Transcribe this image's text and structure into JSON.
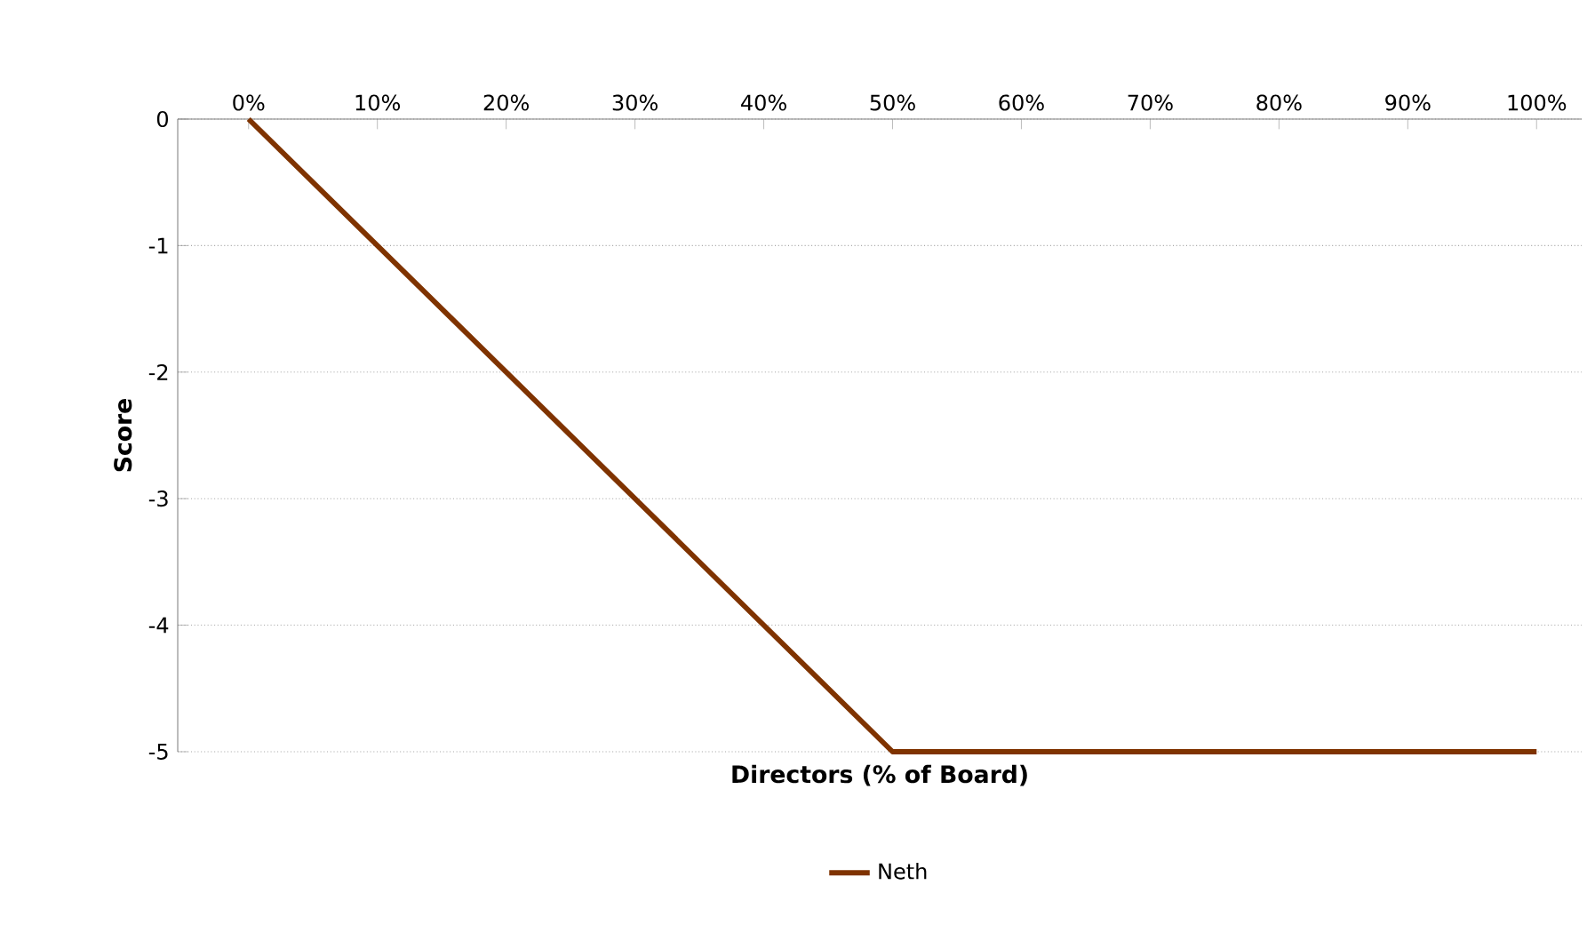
{
  "chart_data": {
    "type": "line",
    "xlabel": "Directors (% of Board)",
    "ylabel": "Score",
    "xlim": [
      -5.5,
      103.5
    ],
    "ylim": [
      -5,
      0
    ],
    "xticks": [
      {
        "value": 0,
        "label": "0%"
      },
      {
        "value": 10,
        "label": "10%"
      },
      {
        "value": 20,
        "label": "20%"
      },
      {
        "value": 30,
        "label": "30%"
      },
      {
        "value": 40,
        "label": "40%"
      },
      {
        "value": 50,
        "label": "50%"
      },
      {
        "value": 60,
        "label": "60%"
      },
      {
        "value": 70,
        "label": "70%"
      },
      {
        "value": 80,
        "label": "80%"
      },
      {
        "value": 90,
        "label": "90%"
      },
      {
        "value": 100,
        "label": "100%"
      }
    ],
    "yticks": [
      -5,
      -4,
      -3,
      -2,
      -1,
      0
    ],
    "grid": "y",
    "legend": "bottom",
    "marker": "none",
    "line_style": "solid",
    "series": [
      {
        "name": "Neth",
        "color": "#7f3300",
        "x": [
          0,
          50,
          100
        ],
        "values": [
          0,
          -5,
          -5
        ]
      }
    ]
  }
}
